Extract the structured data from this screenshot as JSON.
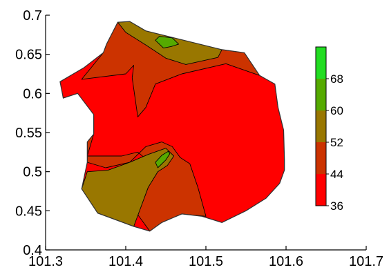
{
  "chart_data": {
    "type": "contour",
    "title": "",
    "xlabel": "",
    "ylabel": "",
    "xlim": [
      101.3,
      101.7
    ],
    "ylim": [
      0.4,
      0.7
    ],
    "x_ticks": [
      "101.3",
      "101.4",
      "101.5",
      "101.6",
      "101.7"
    ],
    "y_ticks": [
      "0.4",
      "0.45",
      "0.5",
      "0.55",
      "0.6",
      "0.65",
      "0.7"
    ],
    "colorbar": {
      "levels": [
        {
          "min": 36,
          "max": 44,
          "color": "#ff0000"
        },
        {
          "min": 44,
          "max": 52,
          "color": "#cc3300"
        },
        {
          "min": 52,
          "max": 60,
          "color": "#997700"
        },
        {
          "min": 60,
          "max": 68,
          "color": "#55aa00"
        },
        {
          "min": 68,
          "max": 76,
          "color": "#22dd22"
        }
      ],
      "labels": [
        "36",
        "44",
        "52",
        "60",
        "68"
      ]
    },
    "outline": [
      [
        101.376,
        0.663
      ],
      [
        101.39,
        0.691
      ],
      [
        101.405,
        0.692
      ],
      [
        101.425,
        0.68
      ],
      [
        101.52,
        0.656
      ],
      [
        101.548,
        0.652
      ],
      [
        101.567,
        0.623
      ],
      [
        101.586,
        0.612
      ],
      [
        101.59,
        0.582
      ],
      [
        101.597,
        0.553
      ],
      [
        101.598,
        0.515
      ],
      [
        101.598,
        0.502
      ],
      [
        101.592,
        0.485
      ],
      [
        101.575,
        0.466
      ],
      [
        101.55,
        0.45
      ],
      [
        101.52,
        0.435
      ],
      [
        101.495,
        0.443
      ],
      [
        101.47,
        0.446
      ],
      [
        101.445,
        0.435
      ],
      [
        101.43,
        0.424
      ],
      [
        101.41,
        0.43
      ],
      [
        101.365,
        0.447
      ],
      [
        101.345,
        0.478
      ],
      [
        101.352,
        0.512
      ],
      [
        101.352,
        0.538
      ],
      [
        101.36,
        0.548
      ],
      [
        101.36,
        0.573
      ],
      [
        101.34,
        0.6
      ],
      [
        101.322,
        0.594
      ],
      [
        101.318,
        0.615
      ],
      [
        101.348,
        0.633
      ],
      [
        101.372,
        0.652
      ]
    ],
    "regions": [
      {
        "value_range": [
          36,
          44
        ],
        "color": "#ff0000",
        "polygon": "outline"
      },
      {
        "value_range": [
          44,
          52
        ],
        "color": "#cc3300",
        "polygon": [
          [
            101.376,
            0.663
          ],
          [
            101.39,
            0.691
          ],
          [
            101.405,
            0.692
          ],
          [
            101.425,
            0.68
          ],
          [
            101.52,
            0.656
          ],
          [
            101.548,
            0.652
          ],
          [
            101.567,
            0.623
          ],
          [
            101.525,
            0.638
          ],
          [
            101.47,
            0.625
          ],
          [
            101.437,
            0.612
          ],
          [
            101.425,
            0.582
          ],
          [
            101.415,
            0.57
          ],
          [
            101.408,
            0.62
          ],
          [
            101.41,
            0.636
          ],
          [
            101.4,
            0.625
          ],
          [
            101.345,
            0.618
          ],
          [
            101.372,
            0.652
          ]
        ]
      },
      {
        "value_range": [
          52,
          60
        ],
        "color": "#997700",
        "polygon": [
          [
            101.39,
            0.691
          ],
          [
            101.405,
            0.692
          ],
          [
            101.425,
            0.68
          ],
          [
            101.52,
            0.656
          ],
          [
            101.515,
            0.646
          ],
          [
            101.475,
            0.637
          ],
          [
            101.45,
            0.645
          ],
          [
            101.425,
            0.662
          ],
          [
            101.4,
            0.678
          ]
        ]
      },
      {
        "value_range": [
          60,
          68
        ],
        "color": "#55aa00",
        "polygon": [
          [
            101.437,
            0.668
          ],
          [
            101.447,
            0.658
          ],
          [
            101.457,
            0.66
          ],
          [
            101.466,
            0.663
          ],
          [
            101.458,
            0.671
          ],
          [
            101.442,
            0.673
          ]
        ]
      },
      {
        "value_range": [
          44,
          52
        ],
        "color": "#cc3300",
        "polygon": [
          [
            101.36,
            0.548
          ],
          [
            101.36,
            0.573
          ],
          [
            101.352,
            0.538
          ],
          [
            101.352,
            0.512
          ],
          [
            101.375,
            0.505
          ],
          [
            101.405,
            0.512
          ],
          [
            101.425,
            0.532
          ],
          [
            101.445,
            0.538
          ],
          [
            101.458,
            0.532
          ],
          [
            101.468,
            0.518
          ],
          [
            101.48,
            0.51
          ],
          [
            101.49,
            0.48
          ],
          [
            101.5,
            0.443
          ],
          [
            101.47,
            0.446
          ],
          [
            101.445,
            0.435
          ],
          [
            101.43,
            0.424
          ],
          [
            101.415,
            0.445
          ],
          [
            101.428,
            0.48
          ],
          [
            101.44,
            0.5
          ],
          [
            101.43,
            0.512
          ],
          [
            101.415,
            0.525
          ],
          [
            101.395,
            0.52
          ],
          [
            101.37,
            0.52
          ],
          [
            101.352,
            0.52
          ]
        ]
      },
      {
        "value_range": [
          52,
          60
        ],
        "color": "#997700",
        "polygon": [
          [
            101.345,
            0.478
          ],
          [
            101.352,
            0.5
          ],
          [
            101.378,
            0.502
          ],
          [
            101.405,
            0.512
          ],
          [
            101.428,
            0.522
          ],
          [
            101.45,
            0.53
          ],
          [
            101.46,
            0.52
          ],
          [
            101.452,
            0.508
          ],
          [
            101.44,
            0.5
          ],
          [
            101.428,
            0.48
          ],
          [
            101.41,
            0.43
          ],
          [
            101.365,
            0.447
          ]
        ]
      },
      {
        "value_range": [
          60,
          68
        ],
        "color": "#55aa00",
        "polygon": [
          [
            101.44,
            0.505
          ],
          [
            101.45,
            0.515
          ],
          [
            101.455,
            0.523
          ],
          [
            101.453,
            0.526
          ],
          [
            101.445,
            0.521
          ],
          [
            101.437,
            0.512
          ]
        ]
      }
    ]
  }
}
